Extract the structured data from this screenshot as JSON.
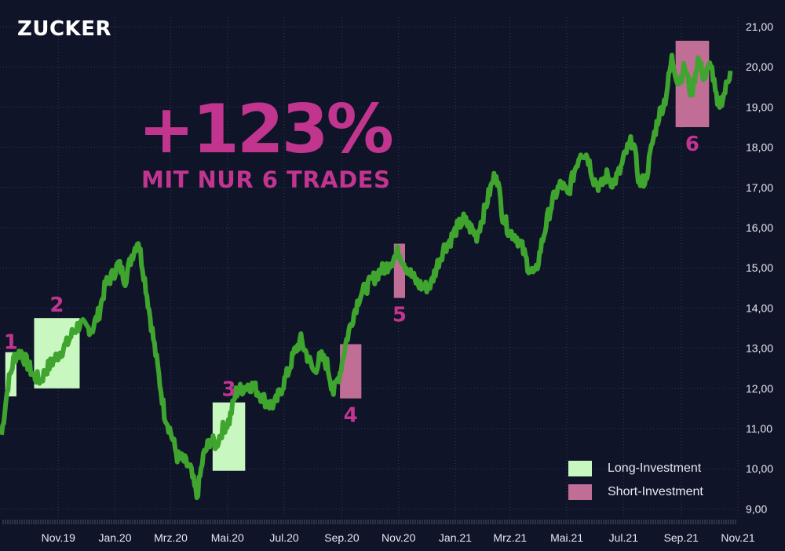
{
  "brand": "ZUCKER",
  "headline": "+123%",
  "subheadline": "MIT NUR 6 TRADES",
  "colors": {
    "background": "#0f1429",
    "price_line": "#3fa52e",
    "long": "#c9f7c0",
    "short": "#c06e96",
    "accent": "#c1358f",
    "text": "#e6e8f0",
    "grid": "#323a55"
  },
  "legend": [
    {
      "label": "Long-Investment",
      "color": "#c9f7c0"
    },
    {
      "label": "Short-Investment",
      "color": "#c06e96"
    }
  ],
  "chart_data": {
    "type": "line",
    "title": "",
    "xlabel": "",
    "ylabel": "",
    "ylim": [
      8.8,
      21.2
    ],
    "y_ticks": [
      "9,00",
      "10,00",
      "11,00",
      "12,00",
      "13,00",
      "14,00",
      "15,00",
      "16,00",
      "17,00",
      "18,00",
      "19,00",
      "20,00",
      "21,00"
    ],
    "x_ticks": [
      "Nov.19",
      "Jan.20",
      "Mrz.20",
      "Mai.20",
      "Jul.20",
      "Sep.20",
      "Nov.20",
      "Jan.21",
      "Mrz.21",
      "Mai.21",
      "Jul.21",
      "Sep.21",
      "Nov.21"
    ],
    "series": [
      {
        "x": [
          "2019-09-01",
          "2019-09-08",
          "2019-09-15",
          "2019-09-22",
          "2019-09-29",
          "2019-10-06",
          "2019-10-13",
          "2019-10-20",
          "2019-10-27",
          "2019-11-03",
          "2019-11-10",
          "2019-11-17",
          "2019-11-24",
          "2019-12-01",
          "2019-12-08",
          "2019-12-15",
          "2019-12-22",
          "2019-12-29",
          "2020-01-05",
          "2020-01-12",
          "2020-01-19",
          "2020-01-26",
          "2020-02-02",
          "2020-02-09",
          "2020-02-16",
          "2020-02-23",
          "2020-03-01",
          "2020-03-08",
          "2020-03-15",
          "2020-03-22",
          "2020-03-29",
          "2020-04-05",
          "2020-04-12",
          "2020-04-19",
          "2020-04-26",
          "2020-05-03",
          "2020-05-10",
          "2020-05-17",
          "2020-05-24",
          "2020-05-31",
          "2020-06-07",
          "2020-06-14",
          "2020-06-21",
          "2020-06-28",
          "2020-07-05",
          "2020-07-12",
          "2020-07-19",
          "2020-07-26",
          "2020-08-02",
          "2020-08-09",
          "2020-08-16",
          "2020-08-23",
          "2020-08-30",
          "2020-09-06",
          "2020-09-13",
          "2020-09-20",
          "2020-09-27",
          "2020-10-04",
          "2020-10-11",
          "2020-10-18",
          "2020-10-25",
          "2020-11-01",
          "2020-11-08",
          "2020-11-15",
          "2020-11-22",
          "2020-11-29",
          "2020-12-06",
          "2020-12-13",
          "2020-12-20",
          "2020-12-27",
          "2021-01-03",
          "2021-01-10",
          "2021-01-17",
          "2021-01-24",
          "2021-01-31",
          "2021-02-07",
          "2021-02-14",
          "2021-02-21",
          "2021-02-28",
          "2021-03-07",
          "2021-03-14",
          "2021-03-21",
          "2021-03-28",
          "2021-04-04",
          "2021-04-11",
          "2021-04-18",
          "2021-04-25",
          "2021-05-02",
          "2021-05-09",
          "2021-05-16",
          "2021-05-23",
          "2021-05-30",
          "2021-06-06",
          "2021-06-13",
          "2021-06-20",
          "2021-06-27",
          "2021-07-04",
          "2021-07-11",
          "2021-07-18",
          "2021-07-25",
          "2021-08-01",
          "2021-08-08",
          "2021-08-15",
          "2021-08-22",
          "2021-08-29",
          "2021-09-05",
          "2021-09-12",
          "2021-09-19",
          "2021-09-26",
          "2021-10-03",
          "2021-10-10",
          "2021-10-17",
          "2021-10-24"
        ],
        "values": [
          10.85,
          12.1,
          12.8,
          12.9,
          12.6,
          12.3,
          12.2,
          12.5,
          12.7,
          12.9,
          13.1,
          13.4,
          13.6,
          13.5,
          13.5,
          13.9,
          14.6,
          14.8,
          15.1,
          14.7,
          15.3,
          15.7,
          14.7,
          13.6,
          12.5,
          11.4,
          10.9,
          10.3,
          10.2,
          10.0,
          9.3,
          10.3,
          10.7,
          10.6,
          11.0,
          11.2,
          11.9,
          12.0,
          12.1,
          12.0,
          11.8,
          11.6,
          11.6,
          12.0,
          12.4,
          12.9,
          13.2,
          12.8,
          12.4,
          12.8,
          12.6,
          11.9,
          12.4,
          13.2,
          13.8,
          14.3,
          14.5,
          14.7,
          14.9,
          15.0,
          15.2,
          15.4,
          15.1,
          14.8,
          14.6,
          14.5,
          14.6,
          15.1,
          15.5,
          15.7,
          16.0,
          16.2,
          16.0,
          15.8,
          16.3,
          16.9,
          17.4,
          16.3,
          15.9,
          15.8,
          15.5,
          15.0,
          14.8,
          15.6,
          16.3,
          16.8,
          17.1,
          16.8,
          17.4,
          17.9,
          17.8,
          17.2,
          17.0,
          17.3,
          17.1,
          17.4,
          17.9,
          18.2,
          17.1,
          17.2,
          18.1,
          18.8,
          19.2,
          20.2,
          19.6,
          20.0,
          19.3,
          20.2,
          19.7,
          20.1,
          19.0,
          19.3,
          19.9
        ]
      }
    ],
    "trades": [
      {
        "label": "1",
        "type": "long",
        "start": "2019-09-05",
        "end": "2019-09-17",
        "low": 11.8,
        "high": 12.9
      },
      {
        "label": "2",
        "type": "long",
        "start": "2019-10-06",
        "end": "2019-11-24",
        "low": 12.0,
        "high": 13.75
      },
      {
        "label": "3",
        "type": "long",
        "start": "2020-04-15",
        "end": "2020-05-20",
        "low": 9.95,
        "high": 11.65
      },
      {
        "label": "4",
        "type": "short",
        "start": "2020-08-30",
        "end": "2020-09-22",
        "low": 11.75,
        "high": 13.1
      },
      {
        "label": "5",
        "type": "short",
        "start": "2020-10-27",
        "end": "2020-11-08",
        "low": 14.25,
        "high": 15.6
      },
      {
        "label": "6",
        "type": "short",
        "start": "2021-08-26",
        "end": "2021-10-01",
        "low": 18.5,
        "high": 20.65
      }
    ]
  }
}
